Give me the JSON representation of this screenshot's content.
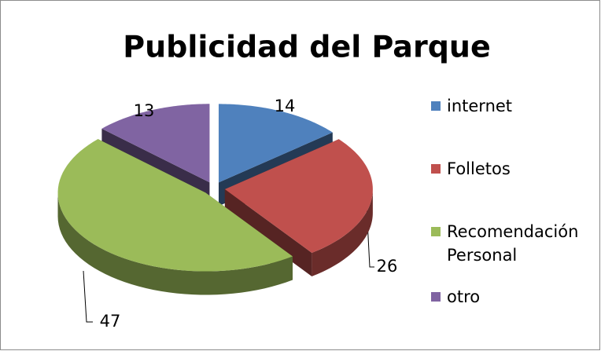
{
  "chart_data": {
    "type": "pie",
    "title": "Publicidad del Parque",
    "categories": [
      "internet",
      "Folletos",
      "Recomendación Personal",
      "otro"
    ],
    "values": [
      14,
      26,
      47,
      13
    ],
    "colors": [
      "#4f81bd",
      "#c0504d",
      "#9bbb59",
      "#8064a2"
    ],
    "legend": "right"
  }
}
